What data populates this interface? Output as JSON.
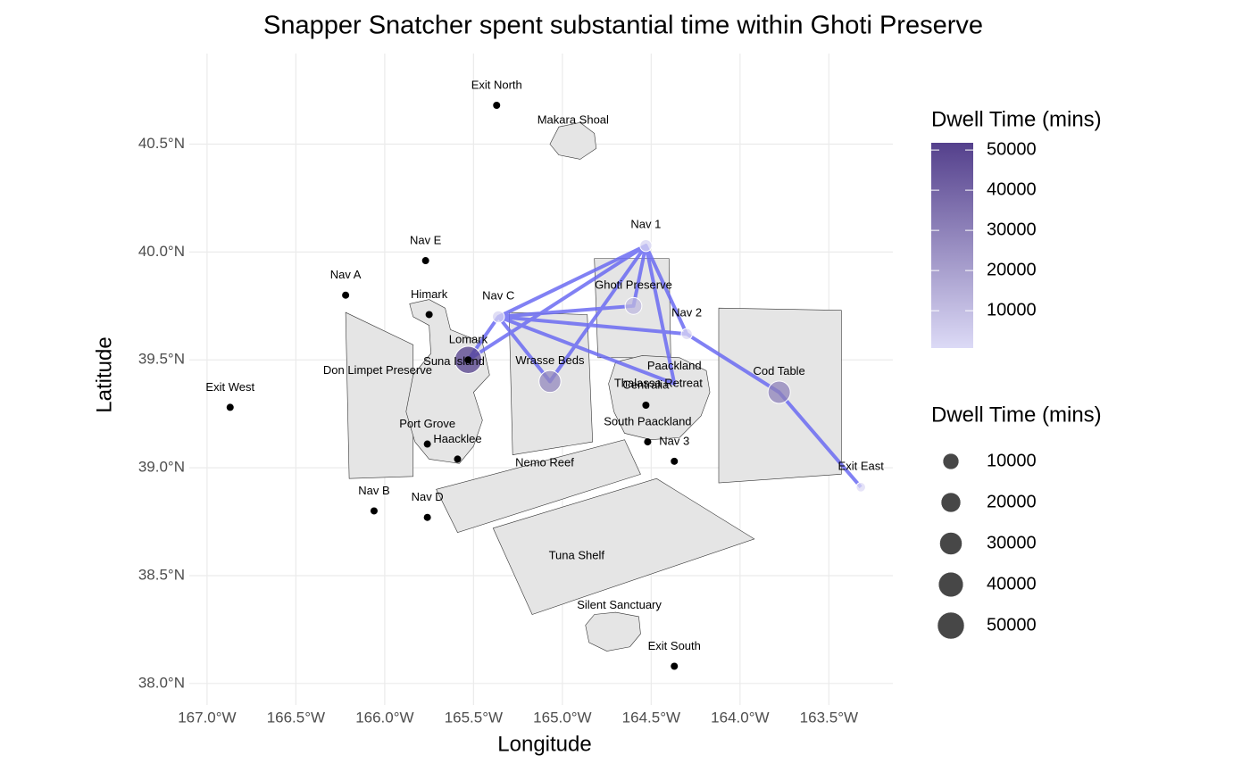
{
  "chart_data": {
    "type": "map",
    "title": "Snapper Snatcher spent substantial time within Ghoti Preserve",
    "x_label": "Longitude",
    "y_label": "Latitude",
    "xlim": [
      -167.1,
      -163.14
    ],
    "ylim": [
      37.9,
      40.92
    ],
    "xticks": [
      {
        "value": -167.0,
        "label": "167.0°W"
      },
      {
        "value": -166.5,
        "label": "166.5°W"
      },
      {
        "value": -166.0,
        "label": "166.0°W"
      },
      {
        "value": -165.5,
        "label": "165.5°W"
      },
      {
        "value": -165.0,
        "label": "165.0°W"
      },
      {
        "value": -164.5,
        "label": "164.5°W"
      },
      {
        "value": -164.0,
        "label": "164.0°W"
      },
      {
        "value": -163.5,
        "label": "163.5°W"
      }
    ],
    "yticks": [
      {
        "value": 38.0,
        "label": "38.0°N"
      },
      {
        "value": 38.5,
        "label": "38.5°N"
      },
      {
        "value": 39.0,
        "label": "39.0°N"
      },
      {
        "value": 39.5,
        "label": "39.5°N"
      },
      {
        "value": 40.0,
        "label": "40.0°N"
      },
      {
        "value": 40.5,
        "label": "40.5°N"
      }
    ],
    "grid": true,
    "region_color": "#e5e5e5",
    "regions": [
      {
        "name": "Makara Shoal",
        "lon": -164.94,
        "lat": 40.61,
        "polygon": [
          [
            -165.07,
            40.5
          ],
          [
            -165.02,
            40.58
          ],
          [
            -164.9,
            40.6
          ],
          [
            -164.82,
            40.55
          ],
          [
            -164.81,
            40.48
          ],
          [
            -164.9,
            40.43
          ],
          [
            -165.02,
            40.45
          ]
        ]
      },
      {
        "name": "Don Limpet Preserve",
        "lon": -166.04,
        "lat": 39.45,
        "polygon": [
          [
            -166.22,
            39.72
          ],
          [
            -165.84,
            39.57
          ],
          [
            -165.84,
            38.96
          ],
          [
            -166.2,
            38.95
          ]
        ]
      },
      {
        "name": "Suna Island",
        "lon": -165.61,
        "lat": 39.49,
        "polygon": [
          [
            -165.86,
            39.76
          ],
          [
            -165.75,
            39.78
          ],
          [
            -165.66,
            39.74
          ],
          [
            -165.63,
            39.64
          ],
          [
            -165.45,
            39.58
          ],
          [
            -165.41,
            39.43
          ],
          [
            -165.5,
            39.35
          ],
          [
            -165.45,
            39.22
          ],
          [
            -165.5,
            39.1
          ],
          [
            -165.58,
            39.02
          ],
          [
            -165.75,
            39.04
          ],
          [
            -165.83,
            39.12
          ],
          [
            -165.88,
            39.26
          ],
          [
            -165.84,
            39.43
          ],
          [
            -165.74,
            39.53
          ],
          [
            -165.75,
            39.66
          ],
          [
            -165.84,
            39.7
          ]
        ]
      },
      {
        "polygon": [
          [
            -165.3,
            39.72
          ],
          [
            -164.86,
            39.71
          ],
          [
            -164.83,
            39.12
          ],
          [
            -165.28,
            39.06
          ]
        ]
      },
      {
        "polygon": [
          [
            -164.82,
            39.97
          ],
          [
            -164.4,
            39.97
          ],
          [
            -164.39,
            39.51
          ],
          [
            -164.8,
            39.51
          ]
        ]
      },
      {
        "name": "Paackland",
        "lon": -164.37,
        "lat": 39.47,
        "polygon": [
          [
            -164.7,
            39.49
          ],
          [
            -164.55,
            39.52
          ],
          [
            -164.34,
            39.51
          ],
          [
            -164.19,
            39.45
          ],
          [
            -164.17,
            39.35
          ],
          [
            -164.22,
            39.24
          ],
          [
            -164.34,
            39.14
          ],
          [
            -164.5,
            39.13
          ],
          [
            -164.65,
            39.16
          ],
          [
            -164.71,
            39.26
          ],
          [
            -164.74,
            39.39
          ]
        ]
      },
      {
        "name": "Thalassa Retreat",
        "lon": -164.46,
        "lat": 39.39
      },
      {
        "polygon": [
          [
            -164.12,
            39.74
          ],
          [
            -163.43,
            39.73
          ],
          [
            -163.43,
            38.97
          ],
          [
            -164.12,
            38.93
          ]
        ]
      },
      {
        "name": "Nemo Reef",
        "lon": -165.1,
        "lat": 39.02,
        "polygon": [
          [
            -165.71,
            38.9
          ],
          [
            -164.65,
            39.13
          ],
          [
            -164.56,
            38.97
          ],
          [
            -165.59,
            38.7
          ]
        ]
      },
      {
        "name": "Tuna Shelf",
        "lon": -164.92,
        "lat": 38.59,
        "polygon": [
          [
            -165.39,
            38.72
          ],
          [
            -164.47,
            38.95
          ],
          [
            -163.92,
            38.67
          ],
          [
            -165.17,
            38.32
          ]
        ]
      },
      {
        "name": "Silent Sanctuary",
        "lon": -164.68,
        "lat": 38.36,
        "polygon": [
          [
            -164.87,
            38.27
          ],
          [
            -164.82,
            38.32
          ],
          [
            -164.7,
            38.33
          ],
          [
            -164.57,
            38.31
          ],
          [
            -164.56,
            38.23
          ],
          [
            -164.62,
            38.17
          ],
          [
            -164.75,
            38.15
          ],
          [
            -164.85,
            38.19
          ]
        ]
      }
    ],
    "track_color": "#6b6bf2",
    "track": {
      "lon": [
        -163.32,
        -163.78,
        -164.3,
        -165.36,
        -165.53,
        -164.53,
        -165.07,
        -165.36,
        -164.6,
        -164.53,
        -164.37,
        -165.36,
        -164.53,
        -164.3
      ],
      "lat": [
        38.91,
        39.35,
        39.62,
        39.7,
        39.5,
        40.03,
        39.4,
        39.7,
        39.75,
        40.03,
        39.39,
        39.7,
        40.03,
        39.62
      ]
    },
    "locations": [
      {
        "name": "Exit North",
        "lon": -165.37,
        "lat": 40.68
      },
      {
        "name": "Nav E",
        "lon": -165.77,
        "lat": 39.96
      },
      {
        "name": "Nav A",
        "lon": -166.22,
        "lat": 39.8
      },
      {
        "name": "Himark",
        "lon": -165.75,
        "lat": 39.71
      },
      {
        "name": "Exit West",
        "lon": -166.87,
        "lat": 39.28
      },
      {
        "name": "Port Grove",
        "lon": -165.76,
        "lat": 39.11
      },
      {
        "name": "Haacklee",
        "lon": -165.59,
        "lat": 39.04
      },
      {
        "name": "Nav B",
        "lon": -166.06,
        "lat": 38.8
      },
      {
        "name": "Nav D",
        "lon": -165.76,
        "lat": 38.77
      },
      {
        "name": "Centralia",
        "lon": -164.53,
        "lat": 39.29
      },
      {
        "name": "South Paackland",
        "lon": -164.52,
        "lat": 39.12
      },
      {
        "name": "Nav 3",
        "lon": -164.37,
        "lat": 39.03
      },
      {
        "name": "Exit South",
        "lon": -164.37,
        "lat": 38.08
      },
      {
        "name": "Lomark",
        "lon": -165.53,
        "lat": 39.5
      }
    ],
    "dwell_points": [
      {
        "name": "Nav 1",
        "lon": -164.53,
        "lat": 40.03,
        "dwell": 3000
      },
      {
        "name": "Nav C",
        "lon": -165.36,
        "lat": 39.7,
        "dwell": 3000
      },
      {
        "name": "Nav 2",
        "lon": -164.3,
        "lat": 39.62,
        "dwell": 2000
      },
      {
        "name": "Ghoti Preserve",
        "lon": -164.6,
        "lat": 39.75,
        "dwell": 12000
      },
      {
        "name": "Wrasse Beds",
        "lon": -165.07,
        "lat": 39.4,
        "dwell": 28000
      },
      {
        "name": "Cod Table",
        "lon": -163.78,
        "lat": 39.35,
        "dwell": 30000
      },
      {
        "name": "Exit East",
        "lon": -163.32,
        "lat": 38.91,
        "dwell": 700
      },
      {
        "lon": -165.53,
        "lat": 39.5,
        "dwell": 51800
      }
    ],
    "color_legend": {
      "title": "Dwell Time (mins)",
      "lim": [
        700,
        51800
      ],
      "low": "#dcdaf6",
      "high": "#54408c",
      "ticks": [
        10000,
        20000,
        30000,
        40000,
        50000
      ]
    },
    "size_legend": {
      "title": "Dwell Time (mins)",
      "breaks": [
        10000,
        20000,
        30000,
        40000,
        50000
      ],
      "color": "#333333"
    }
  }
}
